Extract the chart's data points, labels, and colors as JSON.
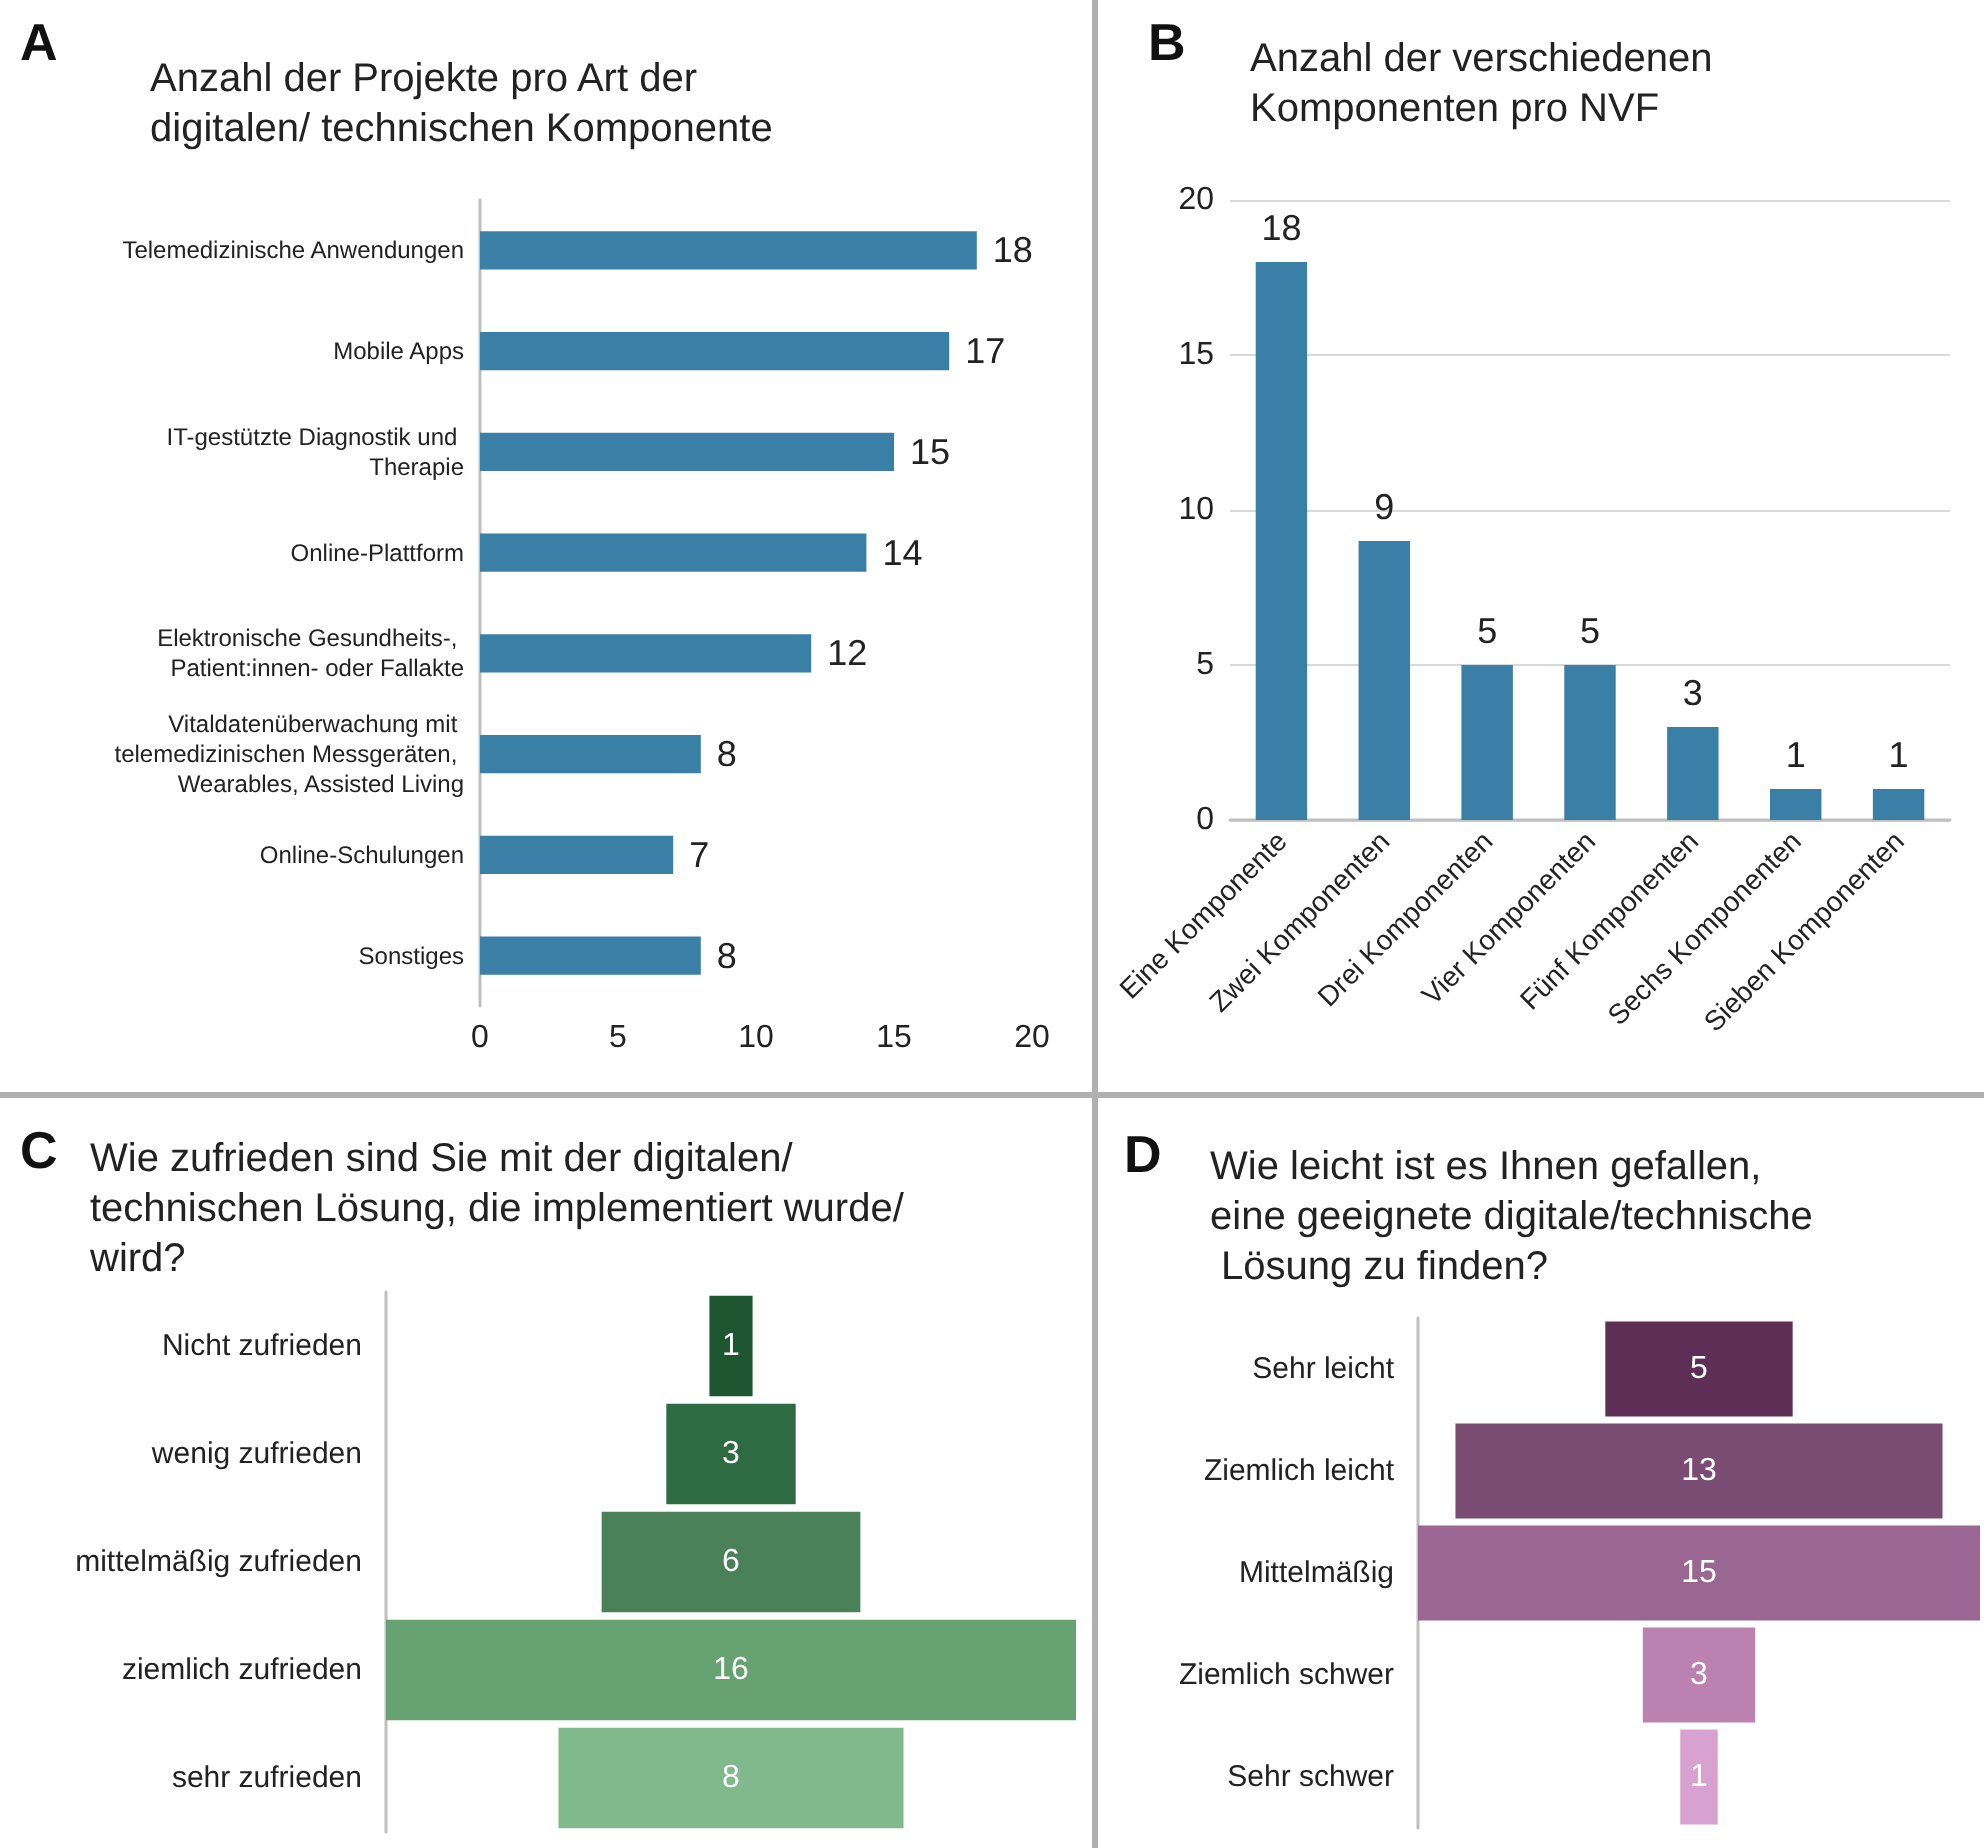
{
  "chart_data": [
    {
      "type": "bar",
      "orientation": "horizontal",
      "title": "Anzahl der Projekte pro Art der digitalen/ technischen Komponente",
      "annotations": [
        "A"
      ],
      "categories": [
        "Telemedizinische Anwendungen",
        "Mobile Apps",
        "IT-gestützte Diagnostik und Therapie",
        "Online-Plattform",
        "Elektronische Gesundheits-, Patient:innen- oder Fallakte",
        "Vitaldatenüberwachung mit telemedizinischen Messgeräten, Wearables, Assisted Living",
        "Online-Schulungen",
        "Sonstiges"
      ],
      "values": [
        18,
        17,
        15,
        14,
        12,
        8,
        7,
        8
      ],
      "color": "#3a7fa5",
      "xlim": [
        0,
        20
      ],
      "xticks": [
        0,
        5,
        10,
        15,
        20
      ],
      "data_labels": true
    },
    {
      "type": "bar",
      "title": "Anzahl der verschiedenen Komponenten pro NVF",
      "annotations": [
        "B"
      ],
      "categories": [
        "Eine Komponente",
        "Zwei Komponenten",
        "Drei Komponenten",
        "Vier Komponenten",
        "Fünf Komponenten",
        "Sechs Komponenten",
        "Sieben Komponenten"
      ],
      "values": [
        18,
        9,
        5,
        5,
        3,
        1,
        1
      ],
      "color": "#3a7fa5",
      "ylim": [
        0,
        20
      ],
      "yticks": [
        0,
        5,
        10,
        15,
        20
      ],
      "grid": "y",
      "data_labels": true
    },
    {
      "type": "other",
      "title": "Wie zufrieden sind Sie mit der digitalen/technischen Lösung, die implementiert wurde/wird?",
      "annotations": [
        "C"
      ],
      "categories": [
        "Nicht zufrieden",
        "wenig zufrieden",
        "mittelmäßig zufrieden",
        "ziemlich zufrieden",
        "sehr zufrieden"
      ],
      "values": [
        1,
        3,
        6,
        16,
        8
      ],
      "colors": [
        "#1e5631",
        "#2e6b42",
        "#4a8158",
        "#66a272",
        "#80b98c"
      ],
      "data_labels": true
    },
    {
      "type": "other",
      "title": "Wie leicht ist es Ihnen gefallen, eine geeignete digitale/technische Lösung zu finden?",
      "annotations": [
        "D"
      ],
      "categories": [
        "Sehr leicht",
        "Ziemlich leicht",
        "Mittelmäßig",
        "Ziemlich schwer",
        "Sehr schwer"
      ],
      "values": [
        5,
        13,
        15,
        3,
        1
      ],
      "colors": [
        "#5f2e57",
        "#7b4c73",
        "#9a6792",
        "#ba81b1",
        "#d7a2d0"
      ],
      "data_labels": true
    }
  ]
}
